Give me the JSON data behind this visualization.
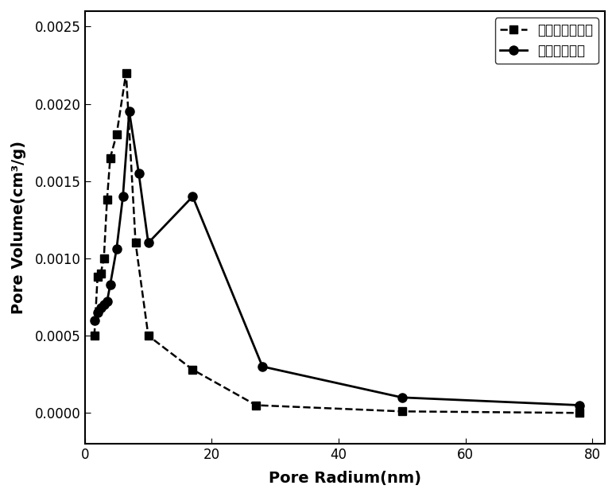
{
  "series1_label": "未添加模板材料",
  "series2_label": "添加模板材料",
  "series1_x": [
    1.5,
    2.0,
    2.5,
    3.0,
    3.5,
    4.0,
    5.0,
    6.5,
    8.0,
    10.0,
    17.0,
    27.0,
    50.0,
    78.0
  ],
  "series1_y": [
    0.0005,
    0.00088,
    0.0009,
    0.001,
    0.00138,
    0.00165,
    0.0018,
    0.0022,
    0.0011,
    0.0005,
    0.00028,
    5e-05,
    1e-05,
    0.0
  ],
  "series2_x": [
    1.5,
    2.0,
    2.5,
    3.0,
    3.5,
    4.0,
    5.0,
    6.0,
    7.0,
    8.5,
    10.0,
    17.0,
    28.0,
    50.0,
    78.0
  ],
  "series2_y": [
    0.0006,
    0.00065,
    0.00068,
    0.0007,
    0.00072,
    0.00083,
    0.00106,
    0.0014,
    0.00195,
    0.00155,
    0.0011,
    0.0014,
    0.0003,
    0.0001,
    5e-05
  ],
  "xlabel": "Pore Radium(nm)",
  "ylabel": "Pore Volume(cm³/g)",
  "xlim": [
    0,
    82
  ],
  "ylim": [
    -0.0002,
    0.0026
  ],
  "xticks": [
    0,
    20,
    40,
    60,
    80
  ],
  "yticks": [
    0.0,
    0.0005,
    0.001,
    0.0015,
    0.002,
    0.0025
  ],
  "legend_loc": "upper right",
  "bg_color": "#ffffff",
  "line_color": "#000000"
}
